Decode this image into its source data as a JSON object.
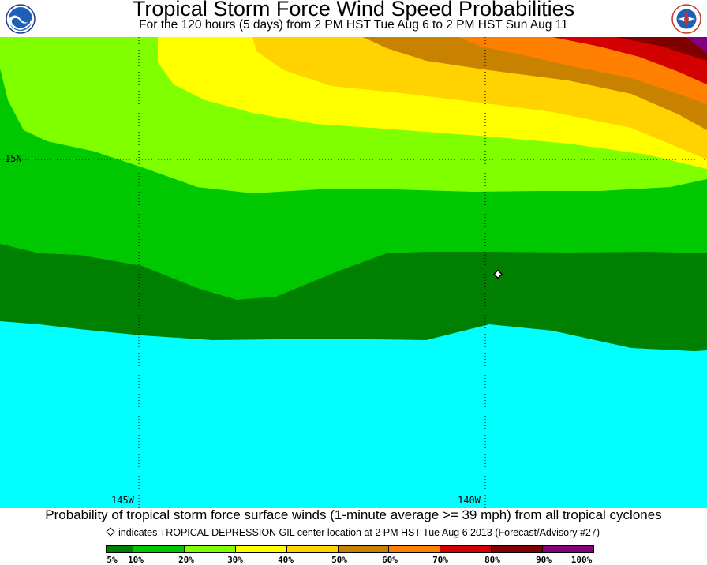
{
  "header": {
    "title": "Tropical Storm Force Wind Speed Probabilities",
    "subtitle": "For the 120 hours (5 days) from 2 PM HST Tue Aug 6 to 2 PM HST Sun Aug 11",
    "left_logo": {
      "name": "noaa-logo-icon",
      "text": "NOAA"
    },
    "right_logo": {
      "name": "national-weather-service-logo-icon",
      "text": "NATIONAL WEATHER SERVICE"
    }
  },
  "map": {
    "grid_labels": {
      "lat_15n": "15N",
      "lon_145w": "145W",
      "lon_140w": "140W"
    },
    "storm_marker": {
      "name": "TROPICAL DEPRESSION GIL center"
    }
  },
  "footer": {
    "caption": "Probability of tropical storm force surface winds (1-minute average >= 39 mph) from all tropical cyclones",
    "center_note": "indicates TROPICAL DEPRESSION GIL center location at 2 PM HST Tue Aug 6 2013 (Forecast/Advisory #27)"
  },
  "legend": {
    "ticks": [
      "5%",
      "10%",
      "20%",
      "30%",
      "40%",
      "50%",
      "60%",
      "70%",
      "80%",
      "90%",
      "100%"
    ],
    "colors": [
      "#008000",
      "#00c800",
      "#80ff00",
      "#ffff00",
      "#ffd200",
      "#c88200",
      "#ff8000",
      "#d20000",
      "#800000",
      "#800080"
    ]
  },
  "colors": {
    "p5": "#00ffff",
    "p5_10": "#008000",
    "p10_20": "#00c800",
    "p20_30": "#80ff00",
    "p30_40": "#ffff00",
    "p40_50": "#ffd200",
    "p50_60": "#c88200",
    "p60_70": "#ff8000",
    "p70_80": "#d20000",
    "p80_90": "#800000",
    "p90_100": "#800080"
  }
}
